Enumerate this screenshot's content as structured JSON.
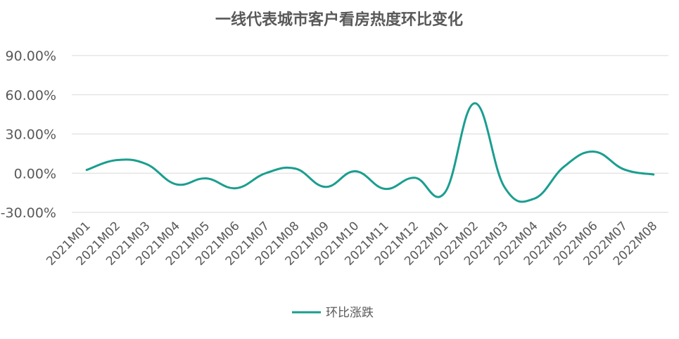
{
  "chart_data": {
    "type": "line",
    "title": "一线代表城市客户看房热度环比变化",
    "categories": [
      "2021M01",
      "2021M02",
      "2021M03",
      "2021M04",
      "2021M05",
      "2021M06",
      "2021M07",
      "2021M08",
      "2021M09",
      "2021M10",
      "2021M11",
      "2021M12",
      "2022M01",
      "2022M02",
      "2022M03",
      "2022M04",
      "2022M05",
      "2022M06",
      "2022M07",
      "2022M08"
    ],
    "series": [
      {
        "name": "环比涨跌",
        "color": "#1a9e8f",
        "values": [
          2.5,
          10,
          7,
          -8.5,
          -4,
          -11.5,
          0,
          3.5,
          -10.5,
          1.5,
          -12,
          -3.5,
          -15,
          53.5,
          -10.5,
          -19.5,
          5,
          16.5,
          3,
          -1
        ]
      }
    ],
    "ylim": [
      -30,
      90
    ],
    "yticks": [
      -30,
      0,
      30,
      60,
      90
    ],
    "ytick_labels": [
      "-30.00%",
      "0.00%",
      "30.00%",
      "60.00%",
      "90.00%"
    ],
    "grid": true,
    "legend_position": "bottom"
  }
}
